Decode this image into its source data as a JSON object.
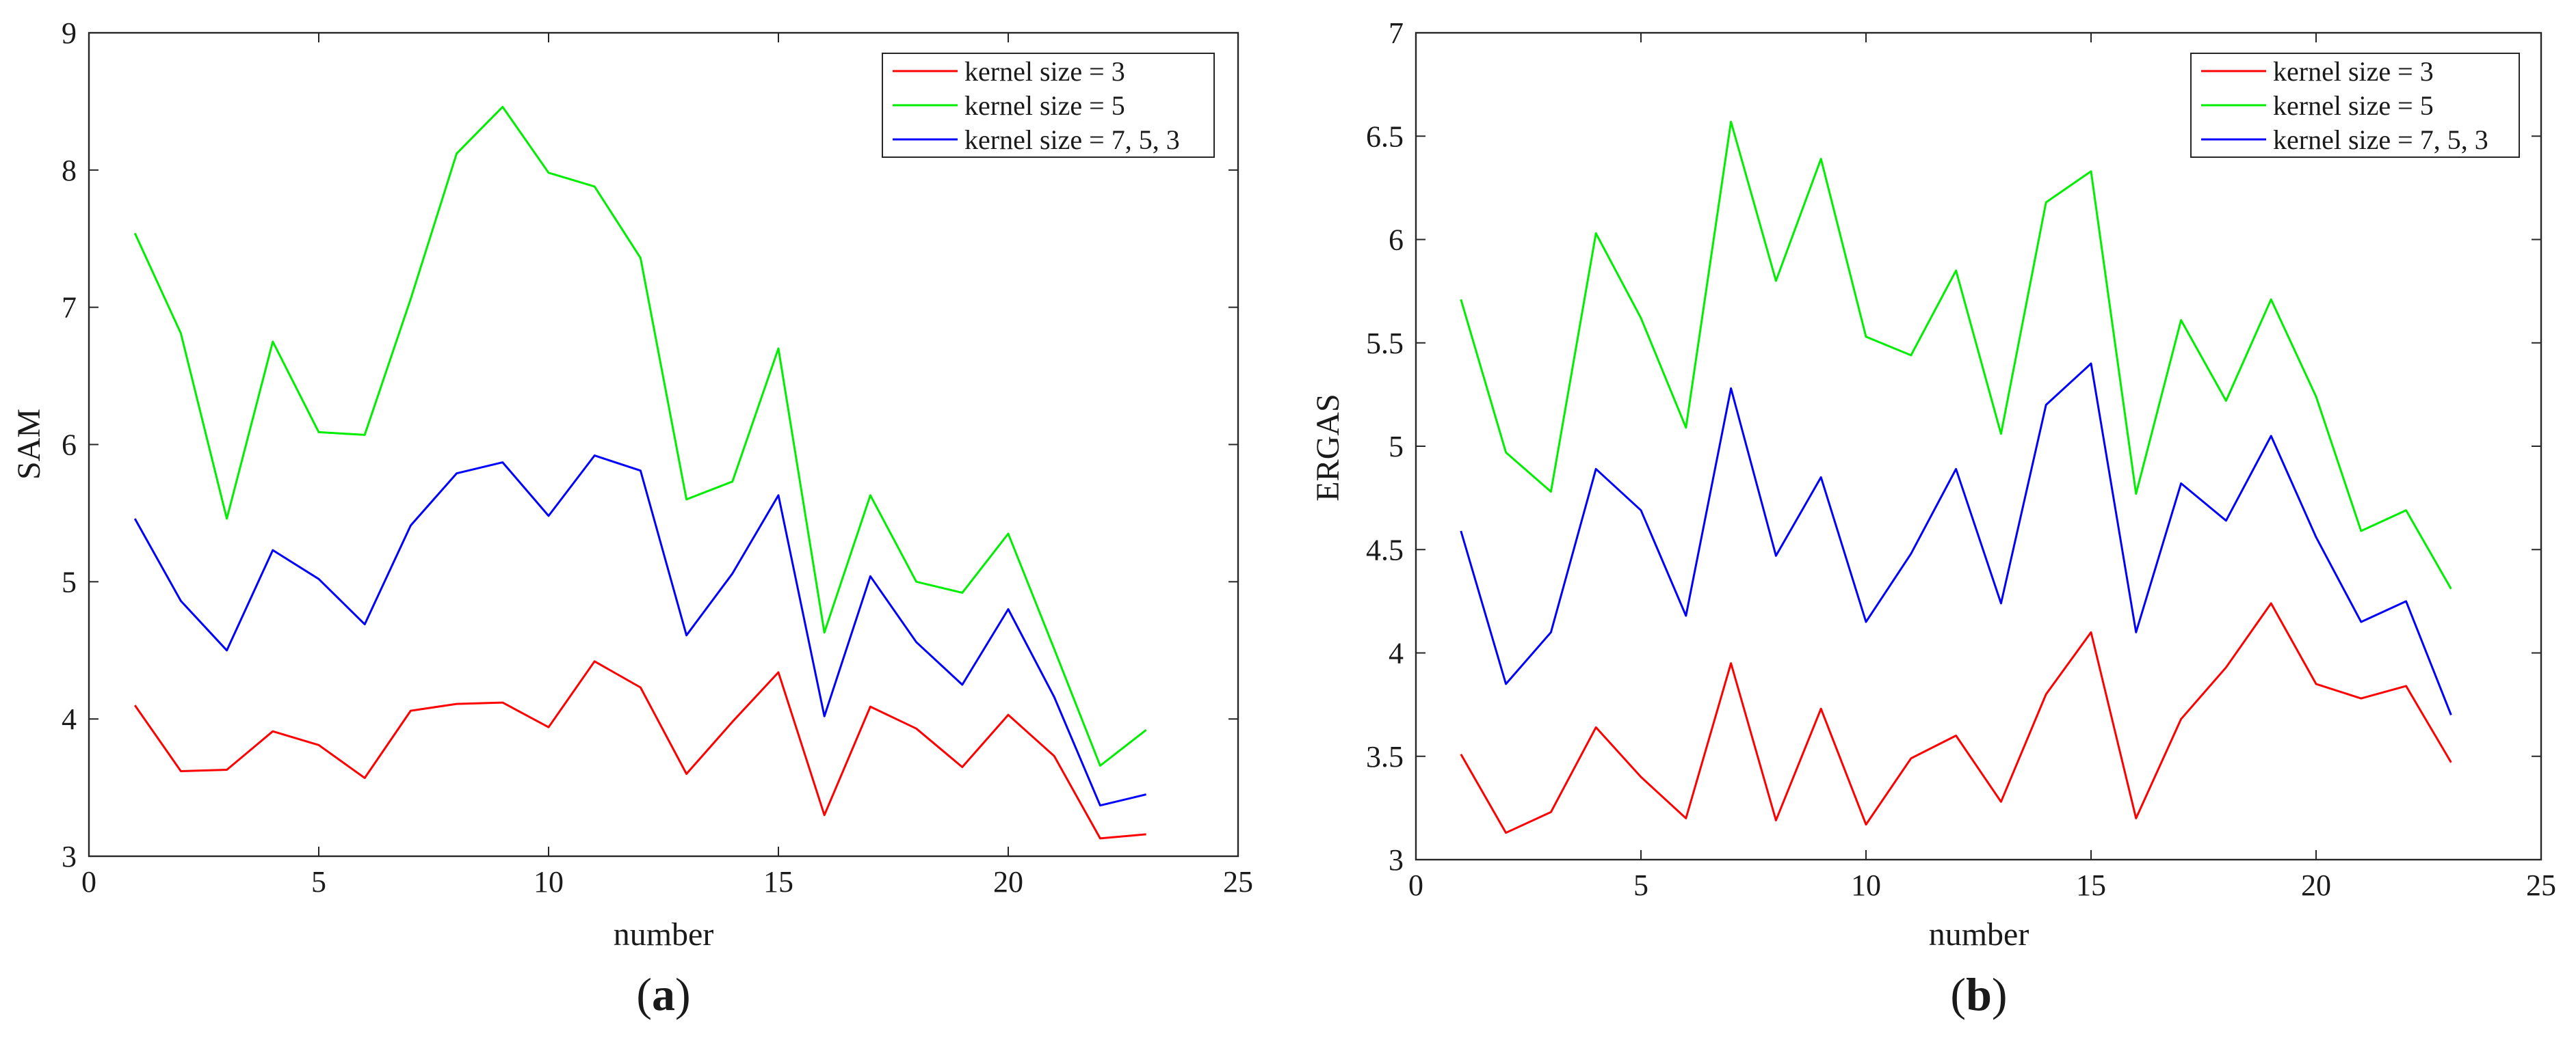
{
  "chart_data": [
    {
      "type": "line",
      "id": "a",
      "caption_letter": "a",
      "caption_open": "(",
      "caption_close": ")",
      "xlabel": "number",
      "ylabel": "SAM",
      "xlim": [
        0,
        25
      ],
      "ylim": [
        3,
        9
      ],
      "xticks": [
        0,
        5,
        10,
        15,
        20,
        25
      ],
      "yticks": [
        3,
        4,
        5,
        6,
        7,
        8,
        9
      ],
      "legend_position": "top-right",
      "x": [
        1,
        2,
        3,
        4,
        5,
        6,
        7,
        8,
        9,
        10,
        11,
        12,
        13,
        14,
        15,
        16,
        17,
        18,
        19,
        20,
        21,
        22,
        23
      ],
      "series": [
        {
          "name": "kernel size = 3",
          "color": "#ff0000",
          "values": [
            4.1,
            3.62,
            3.63,
            3.91,
            3.81,
            3.57,
            4.06,
            4.11,
            4.12,
            3.94,
            4.42,
            4.23,
            3.6,
            3.98,
            4.34,
            3.3,
            4.09,
            3.93,
            3.65,
            4.03,
            3.73,
            3.13,
            3.16
          ]
        },
        {
          "name": "kernel size = 5",
          "color": "#00ee00",
          "values": [
            7.54,
            6.81,
            5.46,
            6.75,
            6.09,
            6.07,
            7.06,
            8.12,
            8.46,
            7.98,
            7.88,
            7.36,
            5.6,
            5.73,
            6.7,
            4.63,
            5.63,
            5.0,
            4.92,
            5.35,
            4.51,
            3.66,
            3.92
          ]
        },
        {
          "name": "kernel size = 7, 5, 3",
          "color": "#0000ff",
          "values": [
            5.46,
            4.86,
            4.5,
            5.23,
            5.02,
            4.69,
            5.41,
            5.79,
            5.87,
            5.48,
            5.92,
            5.81,
            4.61,
            5.06,
            5.63,
            4.02,
            5.04,
            4.56,
            4.25,
            4.8,
            4.16,
            3.37,
            3.45
          ]
        }
      ]
    },
    {
      "type": "line",
      "id": "b",
      "caption_letter": "b",
      "caption_open": "(",
      "caption_close": ")",
      "xlabel": "number",
      "ylabel": "ERGAS",
      "xlim": [
        0,
        25
      ],
      "ylim": [
        3,
        7
      ],
      "xticks": [
        0,
        5,
        10,
        15,
        20,
        25
      ],
      "yticks": [
        3,
        3.5,
        4,
        4.5,
        5,
        5.5,
        6,
        6.5,
        7
      ],
      "legend_position": "top-right",
      "x": [
        1,
        2,
        3,
        4,
        5,
        6,
        7,
        8,
        9,
        10,
        11,
        12,
        13,
        14,
        15,
        16,
        17,
        18,
        19,
        20,
        21,
        22,
        23
      ],
      "series": [
        {
          "name": "kernel size = 3",
          "color": "#ff0000",
          "values": [
            3.51,
            3.13,
            3.23,
            3.64,
            3.4,
            3.2,
            3.95,
            3.19,
            3.73,
            3.17,
            3.49,
            3.6,
            3.28,
            3.8,
            4.1,
            3.2,
            3.68,
            3.93,
            4.24,
            3.85,
            3.78,
            3.84,
            3.47
          ]
        },
        {
          "name": "kernel size = 5",
          "color": "#00ee00",
          "values": [
            5.71,
            4.97,
            4.78,
            6.03,
            5.62,
            5.09,
            6.57,
            5.8,
            6.39,
            5.53,
            5.44,
            5.85,
            5.06,
            6.18,
            6.33,
            4.77,
            5.61,
            5.22,
            5.71,
            5.24,
            4.59,
            4.69,
            4.31
          ]
        },
        {
          "name": "kernel size = 7, 5, 3",
          "color": "#0000ff",
          "values": [
            4.59,
            3.85,
            4.1,
            4.89,
            4.69,
            4.18,
            5.28,
            4.47,
            4.85,
            4.15,
            4.48,
            4.89,
            4.24,
            5.2,
            5.4,
            4.1,
            4.82,
            4.64,
            5.05,
            4.56,
            4.15,
            4.25,
            3.7
          ]
        }
      ]
    }
  ]
}
